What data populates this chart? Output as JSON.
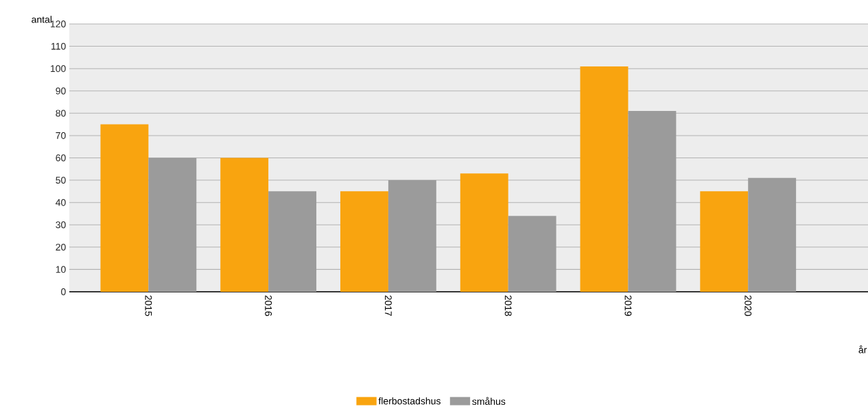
{
  "chart_data": {
    "type": "bar",
    "xlabel": "år",
    "ylabel": "antal",
    "categories": [
      "2015",
      "2016",
      "2017",
      "2018",
      "2019",
      "2020"
    ],
    "series": [
      {
        "name": "flerbostadshus",
        "color": "#f9a40f",
        "values": [
          75,
          60,
          45,
          53,
          101,
          45
        ]
      },
      {
        "name": "småhus",
        "color": "#9b9b9b",
        "values": [
          60,
          45,
          50,
          34,
          81,
          51
        ]
      }
    ],
    "ylim": [
      0,
      120
    ],
    "yticks": [
      0,
      10,
      20,
      30,
      40,
      50,
      60,
      70,
      80,
      90,
      100,
      110,
      120
    ],
    "grid": "y",
    "legend": "bottom"
  }
}
